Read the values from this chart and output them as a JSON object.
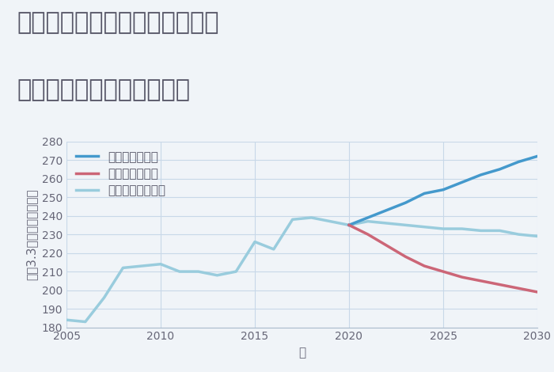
{
  "title_line1": "神奈川県横浜市緑区北八朔町の",
  "title_line2": "中古マンションの価格推移",
  "xlabel": "年",
  "ylabel": "坪（3.3㎡）単価（万円）",
  "background_color": "#f0f4f8",
  "plot_bg_color": "#f0f4f8",
  "ylim": [
    180,
    280
  ],
  "yticks": [
    180,
    190,
    200,
    210,
    220,
    230,
    240,
    250,
    260,
    270,
    280
  ],
  "xlim": [
    2005,
    2030
  ],
  "xticks": [
    2005,
    2010,
    2015,
    2020,
    2025,
    2030
  ],
  "grid_color": "#c8d8e8",
  "normal_scenario": {
    "label": "ノーマルシナリオ",
    "color": "#99ccdd",
    "linewidth": 2.5,
    "years": [
      2005,
      2006,
      2007,
      2008,
      2009,
      2010,
      2011,
      2012,
      2013,
      2014,
      2015,
      2016,
      2017,
      2018,
      2019,
      2020,
      2021,
      2022,
      2023,
      2024,
      2025,
      2026,
      2027,
      2028,
      2029,
      2030
    ],
    "values": [
      184,
      183,
      196,
      212,
      213,
      214,
      210,
      210,
      208,
      210,
      226,
      222,
      238,
      239,
      237,
      235,
      237,
      236,
      235,
      234,
      233,
      233,
      232,
      232,
      230,
      229
    ]
  },
  "good_scenario": {
    "label": "グッドシナリオ",
    "color": "#4499cc",
    "linewidth": 2.5,
    "years": [
      2020,
      2021,
      2022,
      2023,
      2024,
      2025,
      2026,
      2027,
      2028,
      2029,
      2030
    ],
    "values": [
      235,
      239,
      243,
      247,
      252,
      254,
      258,
      262,
      265,
      269,
      272
    ]
  },
  "bad_scenario": {
    "label": "バッドシナリオ",
    "color": "#cc6677",
    "linewidth": 2.5,
    "years": [
      2020,
      2021,
      2022,
      2023,
      2024,
      2025,
      2026,
      2027,
      2028,
      2029,
      2030
    ],
    "values": [
      235,
      230,
      224,
      218,
      213,
      210,
      207,
      205,
      203,
      201,
      199
    ]
  },
  "title_color": "#555566",
  "title_fontsize": 22,
  "label_fontsize": 11,
  "tick_fontsize": 10,
  "legend_fontsize": 11
}
